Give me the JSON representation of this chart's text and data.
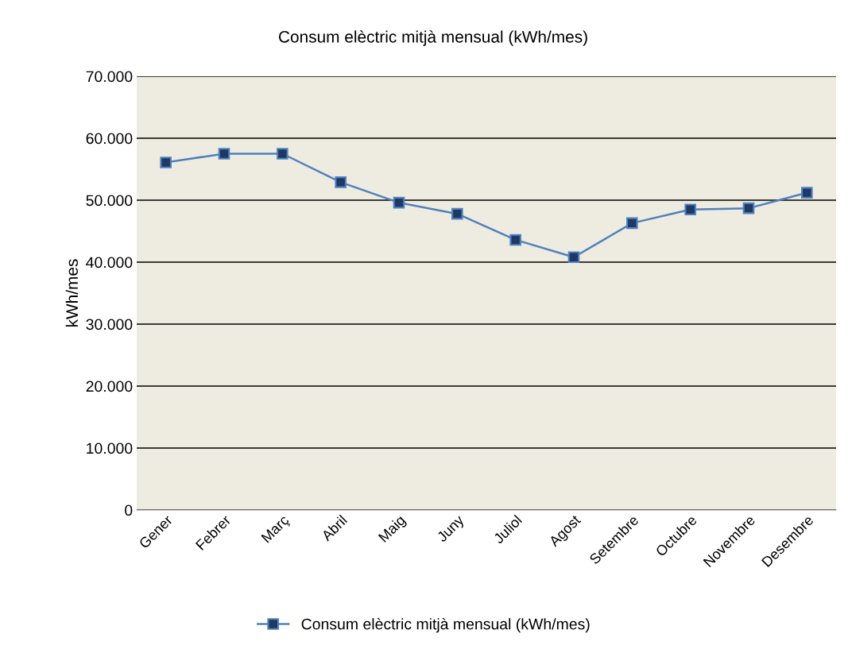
{
  "chart_data": {
    "type": "line",
    "title": "Consum elèctric mitjà mensual (kWh/mes)",
    "ylabel": "kWh/mes",
    "categories": [
      "Gener",
      "Febrer",
      "Març",
      "Abril",
      "Maig",
      "Juny",
      "Juliol",
      "Agost",
      "Setembre",
      "Octubre",
      "Novembre",
      "Desembre"
    ],
    "series": [
      {
        "name": "Consum elèctric mitjà mensual (kWh/mes)",
        "color": "#4f81bd",
        "values": [
          56100,
          57500,
          57500,
          52900,
          49600,
          47800,
          43600,
          40800,
          46300,
          48500,
          48700,
          51200
        ]
      }
    ],
    "ylim": [
      0,
      70000
    ],
    "yticks": [
      0,
      {
        "value": 10000,
        "label": "10.000"
      },
      {
        "value": 20000,
        "label": "20.000"
      },
      {
        "value": 30000,
        "label": "30.000"
      },
      {
        "value": 40000,
        "label": "40.000"
      },
      {
        "value": 50000,
        "label": "50.000"
      },
      {
        "value": 60000,
        "label": "60.000"
      },
      {
        "value": 70000,
        "label": "70.000"
      }
    ],
    "grid": "y",
    "legend": "bottom",
    "marker": "square",
    "line_style": "solid"
  }
}
